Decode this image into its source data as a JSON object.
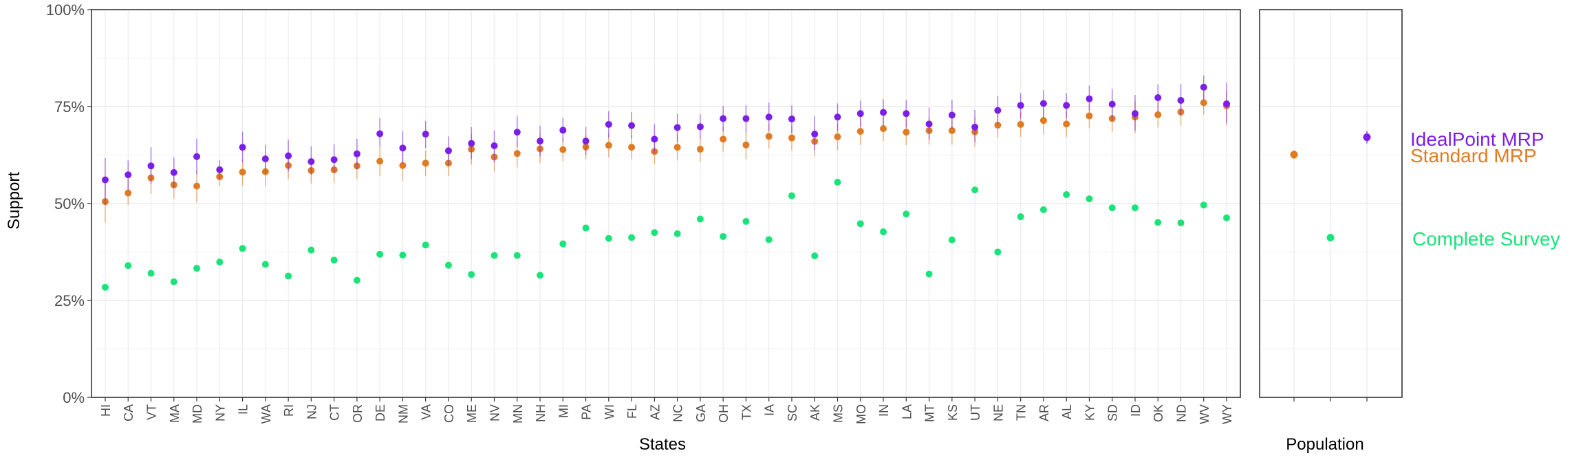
{
  "chart_data": [
    {
      "type": "scatter",
      "panel": "States",
      "xlabel": "States",
      "ylabel": "Support",
      "ylim": [
        0,
        1
      ],
      "yticks": [
        0,
        0.25,
        0.5,
        0.75,
        1.0
      ],
      "ytick_labels": [
        "0%",
        "25%",
        "50%",
        "75%",
        "100%"
      ],
      "grid": true,
      "categories": [
        "HI",
        "CA",
        "VT",
        "MA",
        "MD",
        "NY",
        "IL",
        "WA",
        "RI",
        "NJ",
        "CT",
        "OR",
        "DE",
        "NM",
        "VA",
        "CO",
        "ME",
        "NV",
        "MN",
        "NH",
        "MI",
        "PA",
        "WI",
        "FL",
        "AZ",
        "NC",
        "GA",
        "OH",
        "TX",
        "IA",
        "SC",
        "AK",
        "MS",
        "MO",
        "IN",
        "LA",
        "MT",
        "KS",
        "UT",
        "NE",
        "TN",
        "AR",
        "AL",
        "KY",
        "SD",
        "ID",
        "OK",
        "ND",
        "WV",
        "WY"
      ],
      "series": [
        {
          "name": "IdealPoint MRP",
          "color": "#7b1fe8",
          "values": [
            0.561,
            0.574,
            0.597,
            0.58,
            0.621,
            0.587,
            0.645,
            0.615,
            0.623,
            0.608,
            0.613,
            0.628,
            0.68,
            0.643,
            0.679,
            0.636,
            0.655,
            0.649,
            0.684,
            0.661,
            0.689,
            0.661,
            0.704,
            0.701,
            0.666,
            0.696,
            0.698,
            0.719,
            0.719,
            0.723,
            0.718,
            0.679,
            0.723,
            0.732,
            0.735,
            0.732,
            0.705,
            0.728,
            0.697,
            0.74,
            0.753,
            0.758,
            0.753,
            0.77,
            0.756,
            0.732,
            0.773,
            0.766,
            0.8,
            0.757
          ],
          "lower": [
            0.498,
            0.534,
            0.551,
            0.54,
            0.576,
            0.563,
            0.607,
            0.578,
            0.583,
            0.573,
            0.578,
            0.588,
            0.646,
            0.603,
            0.643,
            0.599,
            0.614,
            0.606,
            0.646,
            0.621,
            0.659,
            0.626,
            0.67,
            0.668,
            0.63,
            0.658,
            0.668,
            0.686,
            0.684,
            0.687,
            0.681,
            0.637,
            0.687,
            0.697,
            0.7,
            0.696,
            0.665,
            0.692,
            0.658,
            0.703,
            0.719,
            0.721,
            0.719,
            0.738,
            0.715,
            0.688,
            0.737,
            0.727,
            0.767,
            0.707
          ],
          "upper": [
            0.617,
            0.611,
            0.645,
            0.619,
            0.667,
            0.612,
            0.685,
            0.651,
            0.665,
            0.647,
            0.652,
            0.667,
            0.72,
            0.686,
            0.713,
            0.673,
            0.697,
            0.688,
            0.725,
            0.701,
            0.721,
            0.697,
            0.738,
            0.736,
            0.704,
            0.731,
            0.73,
            0.752,
            0.753,
            0.76,
            0.753,
            0.725,
            0.758,
            0.765,
            0.769,
            0.767,
            0.747,
            0.768,
            0.741,
            0.777,
            0.785,
            0.792,
            0.785,
            0.804,
            0.795,
            0.78,
            0.807,
            0.808,
            0.83,
            0.811
          ]
        },
        {
          "name": "Standard MRP",
          "color": "#e07b22",
          "values": [
            0.505,
            0.527,
            0.566,
            0.548,
            0.545,
            0.569,
            0.581,
            0.582,
            0.598,
            0.585,
            0.587,
            0.597,
            0.609,
            0.598,
            0.604,
            0.604,
            0.64,
            0.62,
            0.629,
            0.641,
            0.639,
            0.646,
            0.65,
            0.645,
            0.634,
            0.645,
            0.64,
            0.666,
            0.651,
            0.673,
            0.669,
            0.66,
            0.672,
            0.686,
            0.693,
            0.684,
            0.688,
            0.688,
            0.685,
            0.702,
            0.704,
            0.714,
            0.705,
            0.726,
            0.719,
            0.723,
            0.729,
            0.736,
            0.76,
            0.752
          ],
          "lower": [
            0.451,
            0.496,
            0.525,
            0.512,
            0.503,
            0.545,
            0.546,
            0.546,
            0.563,
            0.551,
            0.554,
            0.563,
            0.571,
            0.558,
            0.571,
            0.571,
            0.6,
            0.582,
            0.593,
            0.604,
            0.608,
            0.615,
            0.619,
            0.614,
            0.601,
            0.611,
            0.607,
            0.634,
            0.615,
            0.642,
            0.637,
            0.622,
            0.638,
            0.651,
            0.661,
            0.65,
            0.652,
            0.652,
            0.646,
            0.669,
            0.672,
            0.679,
            0.671,
            0.694,
            0.684,
            0.681,
            0.696,
            0.701,
            0.73,
            0.701
          ],
          "upper": [
            0.558,
            0.562,
            0.605,
            0.586,
            0.586,
            0.593,
            0.613,
            0.616,
            0.633,
            0.62,
            0.62,
            0.63,
            0.646,
            0.636,
            0.637,
            0.638,
            0.679,
            0.657,
            0.665,
            0.678,
            0.671,
            0.677,
            0.681,
            0.676,
            0.667,
            0.679,
            0.672,
            0.699,
            0.686,
            0.706,
            0.701,
            0.697,
            0.706,
            0.72,
            0.725,
            0.717,
            0.722,
            0.723,
            0.722,
            0.735,
            0.735,
            0.748,
            0.738,
            0.757,
            0.752,
            0.764,
            0.762,
            0.77,
            0.79,
            0.79
          ]
        },
        {
          "name": "Complete Survey",
          "color": "#1be37a",
          "values": [
            0.284,
            0.34,
            0.32,
            0.298,
            0.333,
            0.349,
            0.384,
            0.343,
            0.313,
            0.38,
            0.354,
            0.302,
            0.369,
            0.367,
            0.393,
            0.341,
            0.317,
            0.366,
            0.366,
            0.315,
            0.396,
            0.437,
            0.41,
            0.412,
            0.425,
            0.422,
            0.46,
            0.415,
            0.454,
            0.407,
            0.52,
            0.365,
            0.555,
            0.448,
            0.427,
            0.473,
            0.318,
            0.406,
            0.535,
            0.375,
            0.466,
            0.484,
            0.523,
            0.512,
            0.489,
            0.489,
            0.451,
            0.45,
            0.496,
            0.463
          ]
        }
      ]
    },
    {
      "type": "scatter",
      "panel": "Population",
      "xlabel": "Population",
      "ylim": [
        0,
        1
      ],
      "grid": true,
      "series": [
        {
          "name": "Standard MRP",
          "color": "#e07b22",
          "value": 0.626,
          "lower": 0.615,
          "upper": 0.637
        },
        {
          "name": "Complete Survey",
          "color": "#1be37a",
          "value": 0.412
        },
        {
          "name": "IdealPoint MRP",
          "color": "#7b1fe8",
          "value": 0.671,
          "lower": 0.655,
          "upper": 0.687
        }
      ]
    }
  ],
  "legend": [
    {
      "label": "IdealPoint MRP",
      "color": "#7b1fe8"
    },
    {
      "label": "Standard MRP",
      "color": "#e07b22"
    },
    {
      "label": "Complete Survey",
      "color": "#1be37a"
    }
  ]
}
